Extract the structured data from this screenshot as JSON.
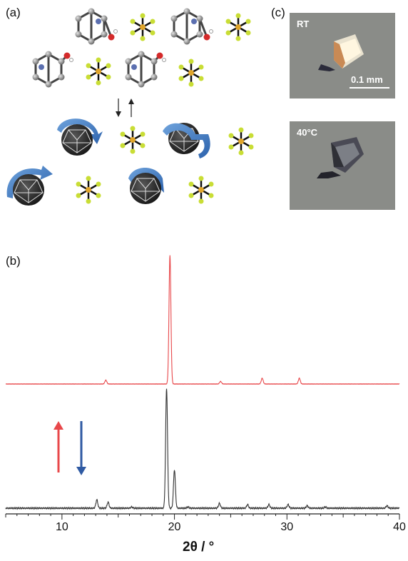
{
  "panels": {
    "a": "(a)",
    "b": "(b)",
    "c": "(c)"
  },
  "micrographs": {
    "top": {
      "tag": "RT",
      "scale": "0.1 mm"
    },
    "bottom": {
      "tag": "40°C"
    }
  },
  "chart_data": {
    "type": "line",
    "xlabel": "2θ / °",
    "ylabel": "",
    "xlim": [
      5,
      40
    ],
    "xticks": [
      10,
      20,
      30,
      40
    ],
    "tick_labels": [
      "10",
      "20",
      "30",
      "40"
    ],
    "grid": false,
    "series": [
      {
        "color": "#e8474a",
        "peaks": [
          {
            "x": 13.9,
            "h": 0.03
          },
          {
            "x": 19.6,
            "h": 1.0
          },
          {
            "x": 24.1,
            "h": 0.02
          },
          {
            "x": 27.8,
            "h": 0.045
          },
          {
            "x": 31.1,
            "h": 0.045
          }
        ]
      },
      {
        "color": "#333333",
        "peaks": [
          {
            "x": 13.1,
            "h": 0.07
          },
          {
            "x": 14.1,
            "h": 0.05
          },
          {
            "x": 16.2,
            "h": 0.01
          },
          {
            "x": 19.3,
            "h": 1.0
          },
          {
            "x": 20.0,
            "h": 0.32
          },
          {
            "x": 21.2,
            "h": 0.01
          },
          {
            "x": 24.0,
            "h": 0.04
          },
          {
            "x": 26.5,
            "h": 0.03
          },
          {
            "x": 28.4,
            "h": 0.03
          },
          {
            "x": 30.1,
            "h": 0.03
          },
          {
            "x": 31.8,
            "h": 0.02
          },
          {
            "x": 33.4,
            "h": 0.01
          },
          {
            "x": 38.9,
            "h": 0.02
          }
        ]
      }
    ],
    "arrows": [
      {
        "direction": "up",
        "color": "#e8474a"
      },
      {
        "direction": "down",
        "color": "#2f5aa3"
      }
    ]
  }
}
